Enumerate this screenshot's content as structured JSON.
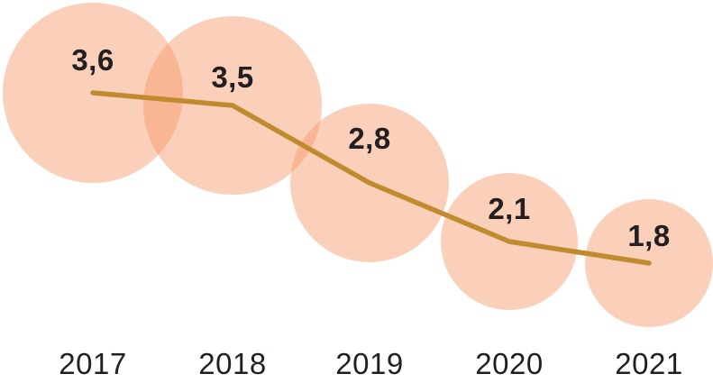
{
  "chart_data": {
    "type": "line",
    "subtype": "bubble-line-combo",
    "title": "",
    "xlabel": "",
    "ylabel": "",
    "legend": "none",
    "grid": false,
    "axes": "category labels only, no axis lines or ticks",
    "categories": [
      "2017",
      "2018",
      "2019",
      "2020",
      "2021"
    ],
    "values": [
      3.6,
      3.5,
      2.8,
      2.1,
      1.8
    ],
    "value_labels": [
      "3,6",
      "3,5",
      "2,8",
      "2,1",
      "1,8"
    ],
    "decimal_separator": ",",
    "bubble_sizing": "area proportional to value",
    "colors": {
      "bubble_fill": "rgba(246,150,103,0.45)",
      "line": "#BF8B2E",
      "text": "#231F20",
      "background": "#FFFFFF"
    }
  }
}
